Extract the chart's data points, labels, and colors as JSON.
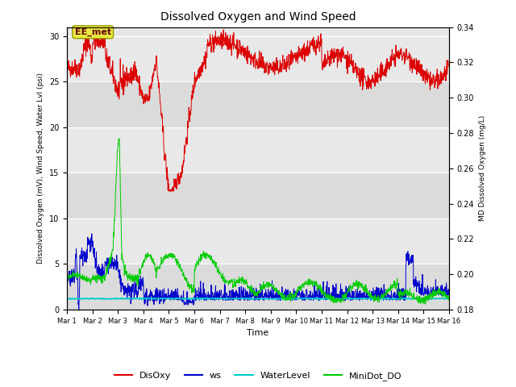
{
  "title": "Dissolved Oxygen and Wind Speed",
  "ylabel_left": "Dissolved Oxygen (mV), Wind Speed, Water Lvl (psi)",
  "ylabel_right": "MD Dissolved Oxygen (mg/L)",
  "xlabel": "Time",
  "ylim_left": [
    0,
    31
  ],
  "ylim_right": [
    0.18,
    0.34
  ],
  "legend_labels": [
    "DisOxy",
    "ws",
    "WaterLevel",
    "MiniDot_DO"
  ],
  "legend_colors": [
    "#ff0000",
    "#0000cc",
    "#00cccc",
    "#00cc00"
  ],
  "annotation_text": "EE_met",
  "plot_bg_color": "#e8e8e8",
  "x_tick_labels": [
    "Mar 1",
    "Mar 2",
    "Mar 3",
    "Mar 4",
    "Mar 5",
    "Mar 6",
    "Mar 7",
    "Mar 8",
    "Mar 9",
    "Mar 10",
    "Mar 11",
    "Mar 12",
    "Mar 13",
    "Mar 14",
    "Mar 15",
    "Mar 16"
  ],
  "yticks_left": [
    0,
    5,
    10,
    15,
    20,
    25,
    30
  ],
  "yticks_right": [
    0.18,
    0.2,
    0.22,
    0.24,
    0.26,
    0.28,
    0.3,
    0.32,
    0.34
  ],
  "disoxy_color": "#dd0000",
  "ws_color": "#0000cc",
  "water_color": "#00cccc",
  "minidot_color": "#00cc00",
  "figsize": [
    6.4,
    4.8
  ],
  "dpi": 100
}
